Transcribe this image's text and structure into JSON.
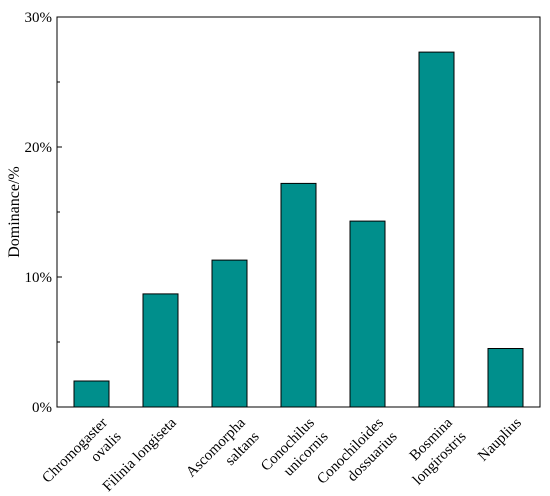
{
  "chart_data": {
    "type": "bar",
    "categories": [
      [
        "Chromogaster",
        "ovalis"
      ],
      [
        "Filinia longiseta"
      ],
      [
        "Ascomorpha",
        "saltans"
      ],
      [
        "Conochilus",
        "unicornis"
      ],
      [
        "Conochiloides",
        "dossuarius"
      ],
      [
        "Bosmina",
        "longirostris"
      ],
      [
        "Nauplius"
      ]
    ],
    "values": [
      2.0,
      8.7,
      11.3,
      17.2,
      14.3,
      27.3,
      4.5
    ],
    "ylabel": "Dominance/%",
    "xlabel": "",
    "ylim": [
      0,
      30
    ],
    "yticks": [
      0,
      10,
      20,
      30
    ],
    "ytick_labels": [
      "0%",
      "10%",
      "20%",
      "30%"
    ],
    "bar_color": "#008F8C",
    "grid": false
  }
}
